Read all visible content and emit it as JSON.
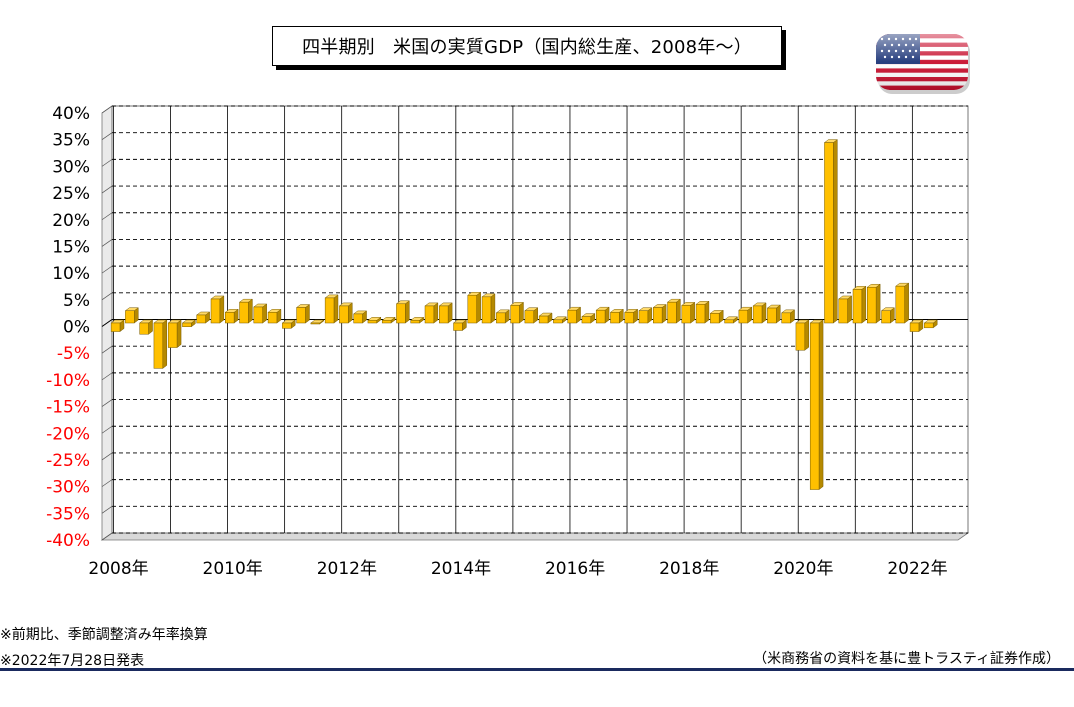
{
  "title": "四半期別　米国の実質GDP（国内総生産、2008年～）",
  "flag_icon": "us-flag-icon",
  "notes": {
    "line1": "※前期比、季節調整済み年率換算",
    "line2": "※2022年7月28日発表",
    "source": "（米商務省の資料を基に豊トラスティ証券作成）"
  },
  "colors": {
    "bar_front": "#FFC000",
    "bar_side": "#B58900",
    "bar_top": "#FFD966",
    "negative_tick": "#FF0000",
    "positive_tick": "#000000",
    "rule": "#1A2A5E"
  },
  "chart_data": {
    "type": "bar",
    "title": "四半期別　米国の実質GDP（国内総生産、2008年～）",
    "xlabel": "",
    "ylabel": "",
    "ylim": [
      -40,
      40
    ],
    "y_ticks": [
      "40%",
      "35%",
      "30%",
      "25%",
      "20%",
      "15%",
      "10%",
      "5%",
      "0%",
      "-5%",
      "-10%",
      "-15%",
      "-20%",
      "-25%",
      "-30%",
      "-35%",
      "-40%"
    ],
    "x_tick_labels": [
      "2008年",
      "2010年",
      "2012年",
      "2014年",
      "2016年",
      "2018年",
      "2020年",
      "2022年"
    ],
    "grid": true,
    "categories": [
      "2008Q1",
      "2008Q2",
      "2008Q3",
      "2008Q4",
      "2009Q1",
      "2009Q2",
      "2009Q3",
      "2009Q4",
      "2010Q1",
      "2010Q2",
      "2010Q3",
      "2010Q4",
      "2011Q1",
      "2011Q2",
      "2011Q3",
      "2011Q4",
      "2012Q1",
      "2012Q2",
      "2012Q3",
      "2012Q4",
      "2013Q1",
      "2013Q2",
      "2013Q3",
      "2013Q4",
      "2014Q1",
      "2014Q2",
      "2014Q3",
      "2014Q4",
      "2015Q1",
      "2015Q2",
      "2015Q3",
      "2015Q4",
      "2016Q1",
      "2016Q2",
      "2016Q3",
      "2016Q4",
      "2017Q1",
      "2017Q2",
      "2017Q3",
      "2017Q4",
      "2018Q1",
      "2018Q2",
      "2018Q3",
      "2018Q4",
      "2019Q1",
      "2019Q2",
      "2019Q3",
      "2019Q4",
      "2020Q1",
      "2020Q2",
      "2020Q3",
      "2020Q4",
      "2021Q1",
      "2021Q2",
      "2021Q3",
      "2021Q4",
      "2022Q1",
      "2022Q2"
    ],
    "values": [
      -1.6,
      2.3,
      -2.1,
      -8.5,
      -4.6,
      -0.7,
      1.5,
      4.5,
      2.0,
      3.9,
      3.0,
      2.0,
      -1.0,
      2.9,
      -0.1,
      4.7,
      3.2,
      1.7,
      0.5,
      0.5,
      3.6,
      0.5,
      3.2,
      3.2,
      -1.4,
      5.2,
      4.9,
      1.9,
      3.3,
      2.3,
      1.3,
      0.6,
      2.4,
      1.2,
      2.4,
      2.0,
      2.0,
      2.3,
      2.9,
      3.9,
      3.3,
      3.5,
      1.8,
      0.6,
      2.4,
      3.2,
      2.8,
      1.9,
      -5.1,
      -31.2,
      33.8,
      4.5,
      6.3,
      6.7,
      2.3,
      6.9,
      -1.6,
      -0.9
    ]
  }
}
